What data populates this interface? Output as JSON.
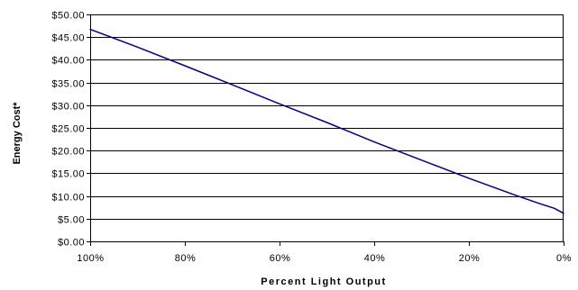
{
  "chart_data": {
    "type": "line",
    "title": "",
    "xlabel": "Percent Light Output",
    "ylabel": "Energy Cost*",
    "x_reversed": true,
    "xlim": [
      100,
      0
    ],
    "ylim": [
      0,
      50
    ],
    "x_ticks": [
      100,
      80,
      60,
      40,
      20,
      0
    ],
    "x_tick_labels": [
      "100%",
      "80%",
      "60%",
      "40%",
      "20%",
      "0%"
    ],
    "y_ticks": [
      0,
      5,
      10,
      15,
      20,
      25,
      30,
      35,
      40,
      45,
      50
    ],
    "y_tick_labels": [
      "$0.00",
      "$5.00",
      "$10.00",
      "$15.00",
      "$20.00",
      "$25.00",
      "$30.00",
      "$35.00",
      "$40.00",
      "$45.00",
      "$50.00"
    ],
    "grid": "horizontal",
    "legend": "none",
    "series": [
      {
        "color": "#000080",
        "x": [
          100,
          90,
          80,
          70,
          60,
          50,
          40,
          30,
          20,
          10,
          5,
          2,
          0
        ],
        "y": [
          46.7,
          42.8,
          38.7,
          34.5,
          30.3,
          26.2,
          21.9,
          17.9,
          13.9,
          10.1,
          8.3,
          7.3,
          6.2
        ]
      }
    ]
  }
}
